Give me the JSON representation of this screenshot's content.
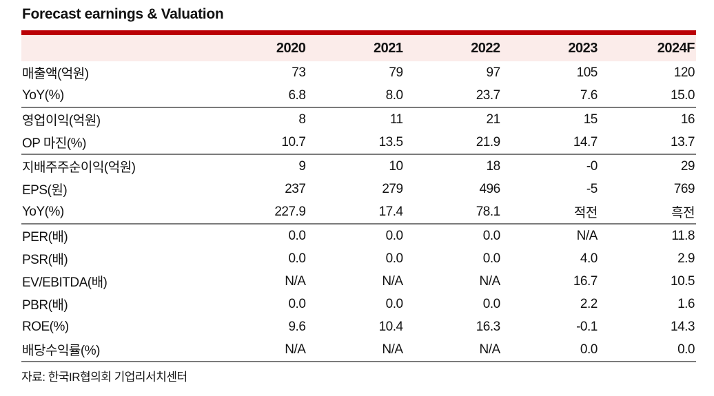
{
  "title": "Forecast earnings & Valuation",
  "colors": {
    "accent_red": "#BB0005",
    "header_bg": "#FBECEA",
    "divider_gray": "#7B7B7B",
    "text": "#131313"
  },
  "table": {
    "columns": [
      "",
      "2020",
      "2021",
      "2022",
      "2023",
      "2024F"
    ],
    "groups": [
      {
        "rows": [
          {
            "label": "매출액(억원)",
            "values": [
              "73",
              "79",
              "97",
              "105",
              "120"
            ]
          },
          {
            "label": "YoY(%)",
            "values": [
              "6.8",
              "8.0",
              "23.7",
              "7.6",
              "15.0"
            ]
          }
        ]
      },
      {
        "rows": [
          {
            "label": "영업이익(억원)",
            "values": [
              "8",
              "11",
              "21",
              "15",
              "16"
            ]
          },
          {
            "label": "OP 마진(%)",
            "values": [
              "10.7",
              "13.5",
              "21.9",
              "14.7",
              "13.7"
            ]
          }
        ]
      },
      {
        "rows": [
          {
            "label": "지배주주순이익(억원)",
            "values": [
              "9",
              "10",
              "18",
              "-0",
              "29"
            ]
          },
          {
            "label": "EPS(원)",
            "values": [
              "237",
              "279",
              "496",
              "-5",
              "769"
            ]
          },
          {
            "label": "YoY(%)",
            "values": [
              "227.9",
              "17.4",
              "78.1",
              "적전",
              "흑전"
            ]
          }
        ]
      },
      {
        "rows": [
          {
            "label": "PER(배)",
            "values": [
              "0.0",
              "0.0",
              "0.0",
              "N/A",
              "11.8"
            ]
          },
          {
            "label": "PSR(배)",
            "values": [
              "0.0",
              "0.0",
              "0.0",
              "4.0",
              "2.9"
            ]
          },
          {
            "label": "EV/EBITDA(배)",
            "values": [
              "N/A",
              "N/A",
              "N/A",
              "16.7",
              "10.5"
            ]
          },
          {
            "label": "PBR(배)",
            "values": [
              "0.0",
              "0.0",
              "0.0",
              "2.2",
              "1.6"
            ]
          },
          {
            "label": "ROE(%)",
            "values": [
              "9.6",
              "10.4",
              "16.3",
              "-0.1",
              "14.3"
            ]
          },
          {
            "label": "배당수익률(%)",
            "values": [
              "N/A",
              "N/A",
              "N/A",
              "0.0",
              "0.0"
            ]
          }
        ]
      }
    ]
  },
  "footer": {
    "source": "자료: 한국IR협의회 기업리서치센터"
  }
}
